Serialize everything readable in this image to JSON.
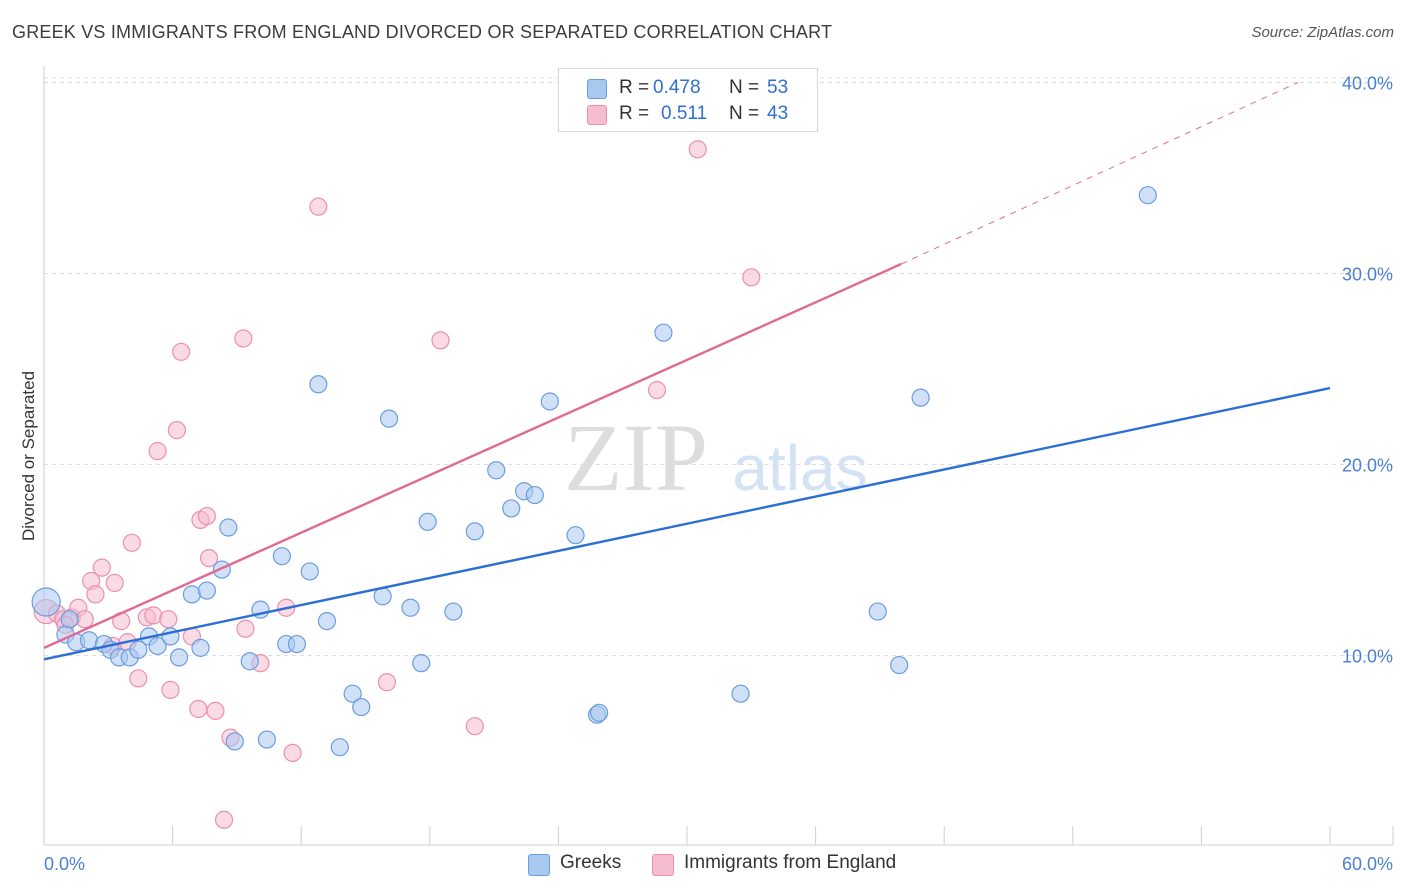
{
  "header": {
    "title": "GREEK VS IMMIGRANTS FROM ENGLAND DIVORCED OR SEPARATED CORRELATION CHART",
    "source": "Source: ZipAtlas.com"
  },
  "watermark": {
    "zip": "ZIP",
    "atlas": "atlas"
  },
  "legend_top": {
    "greek": {
      "r_label": "R =",
      "r_value": "0.478",
      "n_label": "N =",
      "n_value": "53"
    },
    "england": {
      "r_label": "R =",
      "r_value": "0.511",
      "n_label": "N =",
      "n_value": "43"
    }
  },
  "legend_bottom": {
    "greek": "Greeks",
    "england": "Immigrants from England"
  },
  "colors": {
    "greek_fill": "#a9c8f0",
    "greek_stroke": "#6a9de0",
    "greek_line": "#2c6fd4",
    "england_fill": "#f6bcd0",
    "england_stroke": "#eb8fb0",
    "england_line": "#e06a94",
    "axis_text": "#4a7fd4",
    "grid": "#dddddd"
  },
  "chart_data": {
    "type": "scatter",
    "title": "GREEK VS IMMIGRANTS FROM ENGLAND DIVORCED OR SEPARATED CORRELATION CHART",
    "xlabel": "",
    "ylabel": "Divorced or Separated",
    "xlim": [
      0,
      60
    ],
    "ylim": [
      0,
      42
    ],
    "x_tick_labels": [
      "0.0%",
      "60.0%"
    ],
    "y_ticks": [
      10,
      20,
      30,
      40
    ],
    "y_tick_labels": [
      "10.0%",
      "20.0%",
      "30.0%",
      "40.0%"
    ],
    "grid": true,
    "legend_position": "top-center",
    "series": [
      {
        "name": "Greeks",
        "points": [
          [
            0.1,
            12.8
          ],
          [
            1.0,
            11.1
          ],
          [
            1.5,
            10.7
          ],
          [
            2.1,
            10.8
          ],
          [
            2.8,
            10.6
          ],
          [
            3.1,
            10.3
          ],
          [
            3.5,
            9.9
          ],
          [
            4.0,
            9.9
          ],
          [
            4.4,
            10.3
          ],
          [
            4.9,
            11.0
          ],
          [
            5.3,
            10.5
          ],
          [
            5.9,
            11.0
          ],
          [
            6.3,
            9.9
          ],
          [
            6.9,
            13.2
          ],
          [
            7.3,
            10.4
          ],
          [
            7.6,
            13.4
          ],
          [
            8.3,
            14.5
          ],
          [
            8.6,
            16.7
          ],
          [
            8.9,
            5.5
          ],
          [
            9.6,
            9.7
          ],
          [
            10.1,
            12.4
          ],
          [
            10.4,
            5.6
          ],
          [
            11.1,
            15.2
          ],
          [
            11.3,
            10.6
          ],
          [
            11.8,
            10.6
          ],
          [
            12.4,
            14.4
          ],
          [
            12.8,
            24.2
          ],
          [
            13.2,
            11.8
          ],
          [
            13.8,
            5.2
          ],
          [
            14.4,
            8.0
          ],
          [
            14.8,
            7.3
          ],
          [
            15.8,
            13.1
          ],
          [
            16.1,
            22.4
          ],
          [
            17.1,
            12.5
          ],
          [
            17.6,
            9.6
          ],
          [
            17.9,
            17.0
          ],
          [
            19.1,
            12.3
          ],
          [
            20.1,
            16.5
          ],
          [
            21.1,
            19.7
          ],
          [
            21.8,
            17.7
          ],
          [
            22.4,
            18.6
          ],
          [
            22.9,
            18.4
          ],
          [
            23.6,
            23.3
          ],
          [
            24.8,
            16.3
          ],
          [
            25.8,
            6.9
          ],
          [
            25.9,
            7.0
          ],
          [
            28.9,
            26.9
          ],
          [
            32.5,
            8.0
          ],
          [
            38.9,
            12.3
          ],
          [
            39.9,
            9.5
          ],
          [
            40.9,
            23.5
          ],
          [
            51.5,
            34.1
          ],
          [
            1.2,
            11.9
          ]
        ]
      },
      {
        "name": "Immigrants from England",
        "points": [
          [
            0.1,
            12.3
          ],
          [
            0.6,
            12.2
          ],
          [
            0.9,
            11.9
          ],
          [
            1.3,
            12.0
          ],
          [
            1.6,
            12.5
          ],
          [
            1.9,
            11.9
          ],
          [
            2.2,
            13.9
          ],
          [
            2.4,
            13.2
          ],
          [
            2.7,
            14.6
          ],
          [
            3.2,
            10.5
          ],
          [
            3.3,
            13.8
          ],
          [
            3.6,
            11.8
          ],
          [
            3.9,
            10.7
          ],
          [
            4.1,
            15.9
          ],
          [
            4.4,
            8.8
          ],
          [
            4.8,
            12.0
          ],
          [
            5.1,
            12.1
          ],
          [
            5.3,
            20.7
          ],
          [
            5.8,
            11.9
          ],
          [
            5.9,
            8.2
          ],
          [
            6.2,
            21.8
          ],
          [
            6.4,
            25.9
          ],
          [
            6.9,
            11.0
          ],
          [
            7.2,
            7.2
          ],
          [
            7.3,
            17.1
          ],
          [
            7.6,
            17.3
          ],
          [
            7.7,
            15.1
          ],
          [
            8.0,
            7.1
          ],
          [
            8.4,
            1.4
          ],
          [
            8.7,
            5.7
          ],
          [
            9.3,
            26.6
          ],
          [
            9.4,
            11.4
          ],
          [
            10.1,
            9.6
          ],
          [
            11.3,
            12.5
          ],
          [
            11.6,
            4.9
          ],
          [
            12.8,
            33.5
          ],
          [
            16.0,
            8.6
          ],
          [
            18.5,
            26.5
          ],
          [
            20.1,
            6.3
          ],
          [
            28.6,
            23.9
          ],
          [
            30.5,
            36.5
          ],
          [
            33.0,
            29.8
          ],
          [
            1.0,
            11.6
          ]
        ]
      }
    ],
    "trendlines": [
      {
        "series": "Greeks",
        "x": [
          0,
          60
        ],
        "y": [
          9.8,
          24.0
        ],
        "style": "solid"
      },
      {
        "series": "Immigrants from England",
        "x": [
          0,
          40
        ],
        "y": [
          10.4,
          30.5
        ],
        "style": "solid"
      },
      {
        "series": "Immigrants from England",
        "x": [
          40,
          58.5
        ],
        "y": [
          30.5,
          40.0
        ],
        "style": "dashed"
      }
    ]
  }
}
